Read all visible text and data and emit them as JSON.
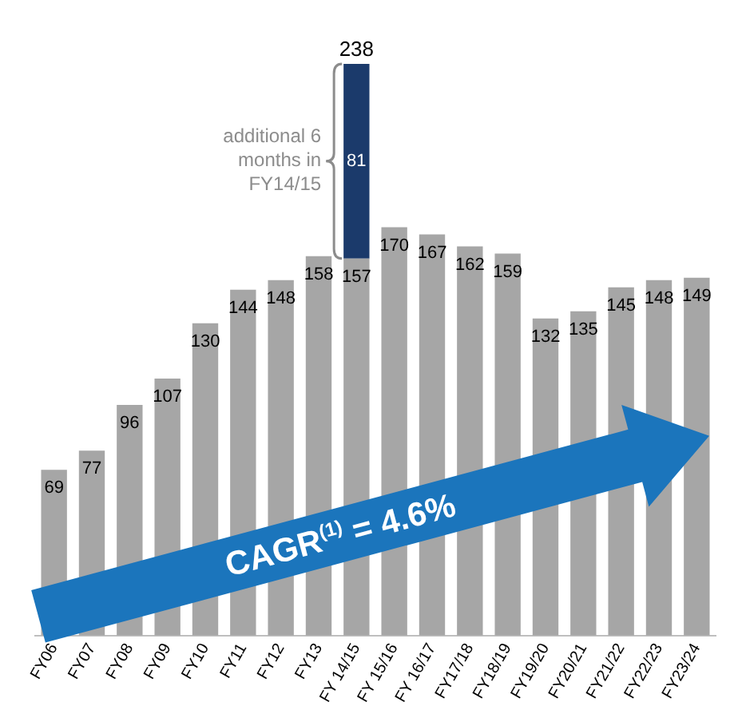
{
  "chart_data": {
    "type": "bar",
    "stacked": true,
    "data_labels": true,
    "grid": false,
    "legend": false,
    "categories": [
      "FY06",
      "FY07",
      "FY08",
      "FY09",
      "FY10",
      "FY11",
      "FY12",
      "FY13",
      "FY 14/15",
      "FY 15/16",
      "FY 16/17",
      "FY17/18",
      "FY18/19",
      "FY19/20",
      "FY20/21",
      "FY21/22",
      "FY22/23",
      "FY23/24"
    ],
    "series": [
      {
        "color": "#a6a6a6",
        "values": [
          69,
          77,
          96,
          107,
          130,
          144,
          148,
          158,
          157,
          170,
          167,
          162,
          159,
          132,
          135,
          145,
          148,
          149
        ]
      },
      {
        "color": "#1b3a6b",
        "values": [
          null,
          null,
          null,
          null,
          null,
          null,
          null,
          null,
          81,
          null,
          null,
          null,
          null,
          null,
          null,
          null,
          null,
          null
        ]
      }
    ],
    "totals": [
      null,
      null,
      null,
      null,
      null,
      null,
      null,
      null,
      "238",
      null,
      null,
      null,
      null,
      null,
      null,
      null,
      null,
      null
    ],
    "annotations": [
      "additional 6 months in FY14/15",
      "CAGR$^{(1)}$ = 4.6%"
    ]
  }
}
